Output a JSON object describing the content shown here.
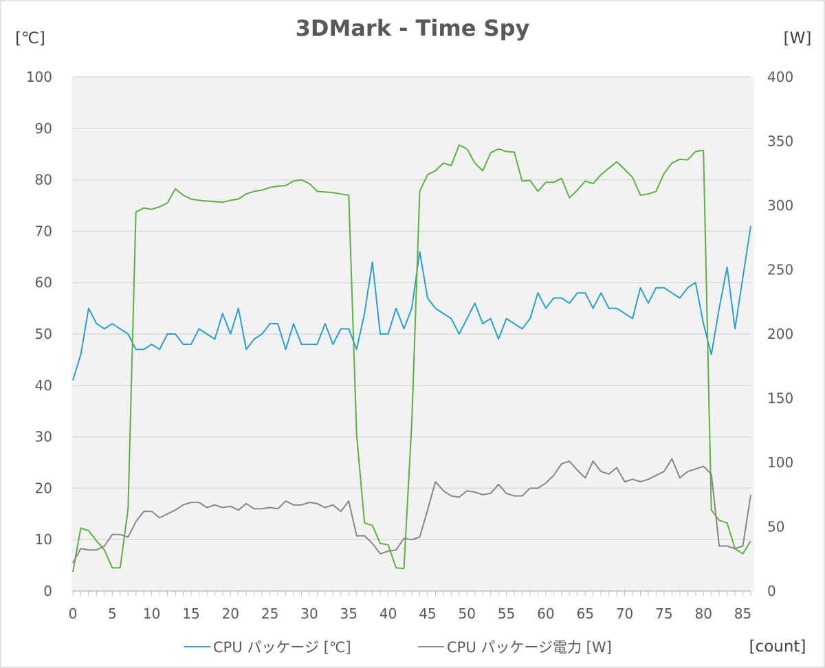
{
  "chart_data": {
    "type": "line",
    "title": "3DMark - Time Spy",
    "left_unit": "[℃]",
    "right_unit": "[W]",
    "x_unit": "[count]",
    "x_ticks": [
      "0",
      "5",
      "10",
      "15",
      "20",
      "25",
      "30",
      "35",
      "40",
      "45",
      "50",
      "55",
      "60",
      "65",
      "70",
      "75",
      "80",
      "85"
    ],
    "y_left_ticks": [
      "0",
      "10",
      "20",
      "30",
      "40",
      "50",
      "60",
      "70",
      "80",
      "90",
      "100"
    ],
    "y_right_ticks": [
      "0",
      "50",
      "100",
      "150",
      "200",
      "250",
      "300",
      "350",
      "400"
    ],
    "xlim": [
      0,
      86
    ],
    "ylim_left": [
      0,
      100
    ],
    "ylim_right": [
      0,
      400
    ],
    "grid": true,
    "legend_position": "bottom",
    "series": [
      {
        "name": "CPU パッケージ [℃]",
        "axis": "left",
        "color": "#2e9fc9",
        "values": [
          41,
          46,
          55,
          52,
          51,
          52,
          51,
          50,
          47,
          47,
          48,
          47,
          50,
          50,
          48,
          48,
          51,
          50,
          49,
          54,
          50,
          55,
          47,
          49,
          50,
          52,
          52,
          47,
          52,
          48,
          48,
          48,
          52,
          48,
          51,
          51,
          47,
          54,
          64,
          50,
          50,
          55,
          51,
          55,
          66,
          57,
          55,
          54,
          53,
          50,
          53,
          56,
          52,
          53,
          49,
          53,
          52,
          51,
          53,
          58,
          55,
          57,
          57,
          56,
          58,
          58,
          55,
          58,
          55,
          55,
          54,
          53,
          59,
          56,
          59,
          59,
          58,
          57,
          59,
          60,
          52,
          46,
          55,
          63,
          51,
          61,
          71
        ]
      },
      {
        "name": "",
        "axis": "right",
        "color": "#5db043",
        "values": [
          15,
          49,
          47,
          39,
          32,
          18,
          18,
          64,
          295,
          298,
          297,
          299,
          302,
          313,
          308,
          305,
          304,
          303.5,
          303,
          302.5,
          304,
          305,
          309,
          311,
          312,
          314,
          315,
          315.5,
          319,
          320,
          317,
          311,
          310.5,
          310,
          309,
          308,
          122,
          53,
          51,
          37,
          36,
          18,
          17.5,
          131,
          311,
          324,
          327,
          333,
          331,
          347,
          344,
          333,
          327,
          341,
          344,
          342,
          341.5,
          319,
          319.5,
          311,
          318,
          318,
          321,
          306,
          312,
          319,
          317,
          324,
          329,
          334,
          328,
          322,
          308,
          309,
          311,
          325,
          333,
          336,
          335.5,
          342,
          343,
          63,
          55,
          53,
          33,
          29,
          39
        ]
      },
      {
        "name": "CPU パッケージ電力 [W]",
        "axis": "right",
        "color": "#878787",
        "values": [
          22,
          33,
          32,
          32,
          35,
          44,
          44,
          42,
          54,
          62,
          62,
          57,
          60,
          63,
          67,
          69,
          69,
          65,
          67,
          65,
          66,
          63,
          68,
          64,
          64,
          65,
          64,
          70,
          67,
          67,
          69,
          68,
          65,
          67,
          62,
          70,
          43,
          43,
          37,
          29,
          31,
          32,
          41,
          40,
          42,
          63,
          85,
          78,
          74,
          73,
          78,
          77,
          75,
          76,
          83,
          76,
          74,
          74,
          80,
          80,
          84,
          90,
          99,
          101,
          94,
          88,
          101,
          93,
          91,
          96,
          85,
          87,
          85,
          87,
          90,
          93,
          103,
          88,
          93,
          95,
          97,
          91,
          35,
          35,
          33,
          35,
          75
        ]
      }
    ]
  }
}
